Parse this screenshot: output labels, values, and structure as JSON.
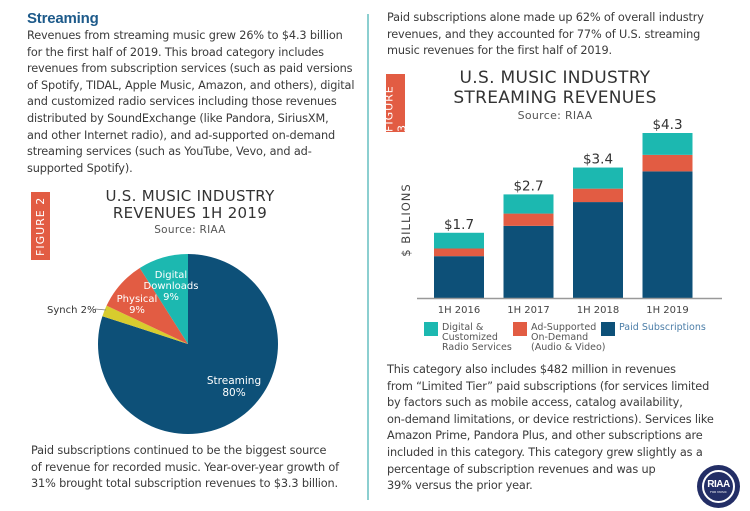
{
  "left": {
    "heading": "Streaming",
    "intro_lines": [
      "Revenues from streaming music grew 26% to $4.3 billion",
      "for the first half of 2019. This broad category includes",
      "revenues from subscription services (such as paid versions",
      "of Spotify, TIDAL, Apple Music, Amazon, and others), digital",
      "and customized radio services including those revenues",
      "distributed by SoundExchange (like Pandora, SiriusXM,",
      "and other Internet radio), and ad-supported on-demand",
      "streaming services (such as YouTube, Vevo, and ad-",
      "supported Spotify)."
    ],
    "outro_lines": [
      "Paid subscriptions continued to be the biggest source",
      "of revenue for recorded music. Year-over-year growth of",
      "31% brought total subscription revenues to $3.3 billion."
    ]
  },
  "right": {
    "intro_lines": [
      "Paid subscriptions alone made up 62% of overall industry",
      "revenues, and they accounted for 77% of U.S. streaming",
      "music revenues for the first half of 2019."
    ],
    "outro_lines": [
      "This category also includes $482 million in revenues",
      "from “Limited Tier” paid subscriptions (for services limited",
      "by factors such as mobile access, catalog availability,",
      "on-demand limitations, or device restrictions). Services like",
      "Amazon Prime, Pandora Plus, and other subscriptions are",
      "included in this category. This category grew slightly as a",
      "percentage of subscription revenues and was up",
      "39% versus the prior year."
    ]
  },
  "logo": {
    "text": "RIAA",
    "subtext": "FOR MUSIC"
  },
  "colors": {
    "streaming_blue": "#0d5078",
    "physical_red": "#e25c43",
    "digital_teal": "#1cb8b0",
    "synch_yellow": "#d8cc2e",
    "heading_blue": "#1d5a8a",
    "divider": "#8ccfd0"
  },
  "chart_data": [
    {
      "type": "pie",
      "figure_label": "FIGURE 2",
      "title": [
        "U.S. MUSIC INDUSTRY",
        "REVENUES 1H 2019"
      ],
      "subtitle": "Source: RIAA",
      "slices": [
        {
          "label": "Streaming",
          "value": 80,
          "value_label": "80%",
          "color": "#0d5078"
        },
        {
          "label": "Synch",
          "value": 2,
          "value_label": "2%",
          "color": "#d8cc2e"
        },
        {
          "label": "Physical",
          "value": 9,
          "value_label": "9%",
          "color": "#e25c43"
        },
        {
          "label": "Digital Downloads",
          "value": 9,
          "value_label": "9%",
          "color": "#1cb8b0"
        }
      ]
    },
    {
      "type": "bar",
      "stacked": true,
      "figure_label": "FIGURE 3",
      "title": [
        "U.S. MUSIC INDUSTRY",
        "STREAMING REVENUES"
      ],
      "subtitle": "Source: RIAA",
      "ylabel": "$ BILLIONS",
      "xlabel": "",
      "categories": [
        "1H 2016",
        "1H 2017",
        "1H 2018",
        "1H 2019"
      ],
      "totals": [
        1.7,
        2.7,
        3.4,
        4.3
      ],
      "total_labels": [
        "$1.7",
        "$2.7",
        "$3.4",
        "$4.3"
      ],
      "ylim": [
        0,
        4.3
      ],
      "grid": false,
      "legend_position": "bottom",
      "series": [
        {
          "name": "Paid Subscriptions",
          "color": "#0d5078",
          "values": [
            1.09,
            1.88,
            2.5,
            3.3
          ]
        },
        {
          "name": "Ad-Supported On-Demand (Audio & Video)",
          "color": "#e25c43",
          "values": [
            0.2,
            0.32,
            0.35,
            0.43
          ]
        },
        {
          "name": "Digital & Customized Radio Services",
          "color": "#1cb8b0",
          "values": [
            0.41,
            0.5,
            0.55,
            0.57
          ]
        }
      ],
      "legend": [
        {
          "lines": [
            "Digital &",
            "Customized",
            "Radio Services"
          ],
          "color": "#1cb8b0"
        },
        {
          "lines": [
            "Ad-Supported",
            "On-Demand",
            "(Audio & Video)"
          ],
          "color": "#e25c43"
        },
        {
          "lines": [
            "Paid Subscriptions"
          ],
          "color": "#0d5078"
        }
      ]
    }
  ]
}
